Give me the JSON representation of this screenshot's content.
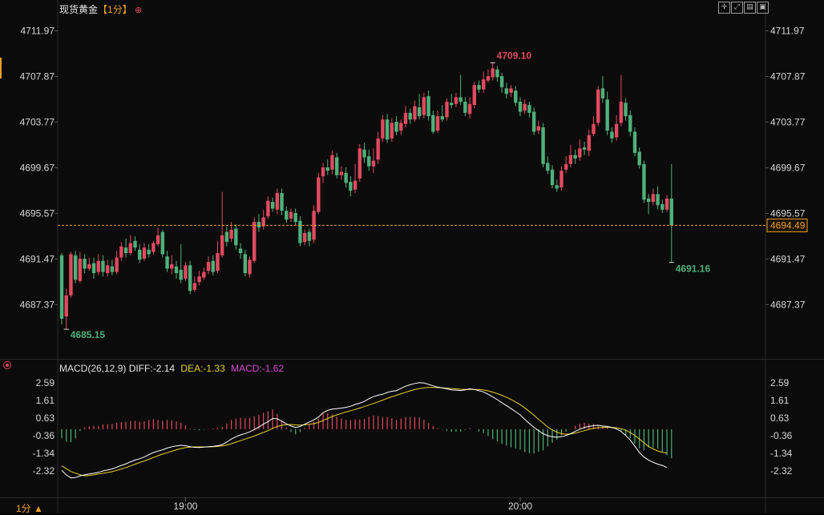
{
  "header": {
    "instrument": "现货黄金",
    "period": "【1分】",
    "period_icon": "plus-circle-icon"
  },
  "toolbar": {
    "icons": [
      "crosshair-icon",
      "expand-icon",
      "layout-icon",
      "window-icon"
    ]
  },
  "footer": {
    "period_label": "1分 ▲"
  },
  "colors": {
    "up": "#e04a5f",
    "down": "#4fb07a",
    "diff_line": "#ffffff",
    "dea_line": "#e8d02a",
    "macd_label": "#d84ad8",
    "current_price": "#f0a020",
    "marker_high": "#e04a5f",
    "marker_low": "#4fb07a",
    "background": "#0b0b0b"
  },
  "chart_data": [
    {
      "type": "candlestick",
      "x_tick_labels": [
        "19:00",
        "20:00"
      ],
      "y_tick_labels": [
        "4711.97",
        "4707.87",
        "4703.77",
        "4699.67",
        "4695.57",
        "4691.47",
        "4687.37"
      ],
      "ylim": [
        4682.5,
        4713.3
      ],
      "current_price": 4694.49,
      "current_price_label": "4694.49",
      "high_marker": {
        "value": 4709.1,
        "label": "4709.10"
      },
      "low_marker": {
        "value": 4685.15,
        "label": "4685.15"
      },
      "end_low_marker": {
        "value": 4691.16,
        "label": "4691.16"
      },
      "candles": [
        [
          4691.8,
          4686.1,
          4692.0,
          4685.6
        ],
        [
          4686.3,
          4688.2,
          4688.8,
          4685.15
        ],
        [
          4688.2,
          4691.9,
          4692.1,
          4688.0
        ],
        [
          4691.8,
          4689.6,
          4692.2,
          4689.3
        ],
        [
          4689.5,
          4691.5,
          4692.1,
          4689.3
        ],
        [
          4691.5,
          4690.6,
          4691.9,
          4690.2
        ],
        [
          4690.6,
          4691.0,
          4691.6,
          4690.4
        ],
        [
          4691.1,
          4690.2,
          4691.6,
          4689.7
        ],
        [
          4690.3,
          4691.3,
          4691.9,
          4690.0
        ],
        [
          4691.3,
          4690.3,
          4691.8,
          4689.9
        ],
        [
          4690.2,
          4690.9,
          4691.4,
          4689.9
        ],
        [
          4690.8,
          4690.3,
          4691.4,
          4690.0
        ],
        [
          4690.3,
          4691.6,
          4692.2,
          4690.1
        ],
        [
          4691.6,
          4692.6,
          4693.0,
          4691.3
        ],
        [
          4692.5,
          4692.0,
          4693.3,
          4691.6
        ],
        [
          4692.0,
          4692.9,
          4693.6,
          4691.8
        ],
        [
          4693.1,
          4692.5,
          4693.5,
          4692.2
        ],
        [
          4692.3,
          4691.4,
          4692.8,
          4691.1
        ],
        [
          4691.5,
          4692.5,
          4692.9,
          4691.3
        ],
        [
          4692.3,
          4691.9,
          4692.8,
          4691.6
        ],
        [
          4692.1,
          4692.9,
          4693.1,
          4691.9
        ],
        [
          4692.8,
          4693.6,
          4694.3,
          4692.6
        ],
        [
          4693.9,
          4691.9,
          4694.1,
          4691.6
        ],
        [
          4691.7,
          4690.6,
          4692.2,
          4690.3
        ],
        [
          4690.6,
          4691.0,
          4691.8,
          4690.1
        ],
        [
          4690.8,
          4690.2,
          4691.3,
          4689.7
        ],
        [
          4690.5,
          4689.6,
          4692.8,
          4689.3
        ],
        [
          4689.7,
          4690.9,
          4691.2,
          4689.5
        ],
        [
          4690.9,
          4688.6,
          4691.3,
          4688.3
        ],
        [
          4688.7,
          4689.3,
          4689.9,
          4688.5
        ],
        [
          4689.4,
          4689.9,
          4690.4,
          4689.1
        ],
        [
          4689.8,
          4690.3,
          4690.7,
          4689.6
        ],
        [
          4690.4,
          4691.2,
          4691.7,
          4690.1
        ],
        [
          4691.3,
          4690.3,
          4691.8,
          4690.0
        ],
        [
          4690.4,
          4692.0,
          4693.1,
          4690.2
        ],
        [
          4691.8,
          4693.6,
          4697.5,
          4691.6
        ],
        [
          4693.9,
          4693.0,
          4694.4,
          4692.6
        ],
        [
          4693.3,
          4694.1,
          4694.8,
          4693.0
        ],
        [
          4694.2,
          4692.7,
          4694.6,
          4692.3
        ],
        [
          4692.4,
          4692.0,
          4692.9,
          4691.5
        ],
        [
          4691.9,
          4690.2,
          4692.3,
          4689.9
        ],
        [
          4690.1,
          4691.4,
          4691.7,
          4689.8
        ],
        [
          4691.3,
          4694.8,
          4695.2,
          4691.1
        ],
        [
          4694.8,
          4694.3,
          4695.5,
          4693.9
        ],
        [
          4694.4,
          4695.2,
          4695.9,
          4694.1
        ],
        [
          4695.3,
          4696.7,
          4697.1,
          4695.1
        ],
        [
          4696.6,
          4696.0,
          4697.0,
          4695.7
        ],
        [
          4695.9,
          4697.4,
          4697.8,
          4695.5
        ],
        [
          4697.4,
          4695.8,
          4697.8,
          4695.4
        ],
        [
          4695.8,
          4695.0,
          4696.2,
          4694.7
        ],
        [
          4695.1,
          4695.7,
          4696.0,
          4694.8
        ],
        [
          4695.6,
          4694.8,
          4696.0,
          4694.5
        ],
        [
          4694.9,
          4692.9,
          4695.3,
          4692.6
        ],
        [
          4693.0,
          4693.8,
          4694.1,
          4692.7
        ],
        [
          4693.9,
          4693.1,
          4694.2,
          4692.6
        ],
        [
          4693.2,
          4695.8,
          4696.3,
          4692.9
        ],
        [
          4695.7,
          4698.8,
          4699.2,
          4695.5
        ],
        [
          4698.9,
          4699.7,
          4700.1,
          4698.3
        ],
        [
          4699.7,
          4699.4,
          4700.4,
          4699.0
        ],
        [
          4699.5,
          4700.8,
          4701.2,
          4699.1
        ],
        [
          4700.6,
          4699.0,
          4701.0,
          4698.7
        ],
        [
          4699.0,
          4699.3,
          4699.8,
          4698.6
        ],
        [
          4699.2,
          4698.3,
          4699.7,
          4697.9
        ],
        [
          4698.4,
          4697.6,
          4698.9,
          4697.1
        ],
        [
          4697.7,
          4698.5,
          4700.0,
          4697.4
        ],
        [
          4698.7,
          4701.4,
          4701.8,
          4698.4
        ],
        [
          4701.3,
          4700.6,
          4701.9,
          4700.1
        ],
        [
          4700.7,
          4699.8,
          4701.3,
          4699.4
        ],
        [
          4699.8,
          4700.3,
          4701.4,
          4699.2
        ],
        [
          4700.4,
          4702.3,
          4702.9,
          4700.0
        ],
        [
          4702.3,
          4704.0,
          4704.4,
          4702.0
        ],
        [
          4704.0,
          4702.2,
          4704.5,
          4701.9
        ],
        [
          4702.3,
          4703.7,
          4704.1,
          4702.0
        ],
        [
          4703.8,
          4702.9,
          4704.3,
          4702.6
        ],
        [
          4703.0,
          4703.7,
          4704.0,
          4702.6
        ],
        [
          4703.6,
          4704.6,
          4705.2,
          4703.3
        ],
        [
          4704.6,
          4704.0,
          4705.0,
          4703.6
        ],
        [
          4704.0,
          4705.2,
          4705.7,
          4703.8
        ],
        [
          4705.1,
          4704.3,
          4706.3,
          4704.0
        ],
        [
          4704.4,
          4706.0,
          4706.4,
          4704.1
        ],
        [
          4706.1,
          4704.3,
          4706.6,
          4703.9
        ],
        [
          4704.4,
          4702.9,
          4704.8,
          4702.7
        ],
        [
          4703.0,
          4704.3,
          4704.8,
          4702.8
        ],
        [
          4704.3,
          4704.0,
          4705.3,
          4703.8
        ],
        [
          4704.2,
          4705.6,
          4705.9,
          4703.9
        ],
        [
          4705.5,
          4705.3,
          4706.3,
          4705.0
        ],
        [
          4705.4,
          4706.0,
          4706.4,
          4705.1
        ],
        [
          4706.0,
          4705.6,
          4708.0,
          4705.3
        ],
        [
          4705.6,
          4704.6,
          4706.0,
          4704.3
        ],
        [
          4704.5,
          4705.4,
          4706.0,
          4704.1
        ],
        [
          4705.3,
          4707.1,
          4707.4,
          4705.0
        ],
        [
          4707.1,
          4706.7,
          4707.5,
          4706.4
        ],
        [
          4706.7,
          4707.6,
          4708.3,
          4706.4
        ],
        [
          4707.5,
          4707.9,
          4708.5,
          4707.3
        ],
        [
          4707.8,
          4708.6,
          4709.1,
          4707.5
        ],
        [
          4708.5,
          4707.8,
          4708.8,
          4707.4
        ],
        [
          4707.9,
          4706.9,
          4708.2,
          4706.4
        ],
        [
          4706.8,
          4706.3,
          4707.3,
          4705.9
        ],
        [
          4706.4,
          4706.8,
          4707.1,
          4706.0
        ],
        [
          4706.6,
          4705.5,
          4707.0,
          4705.2
        ],
        [
          4705.6,
          4704.7,
          4706.0,
          4704.3
        ],
        [
          4704.8,
          4705.4,
          4705.8,
          4704.5
        ],
        [
          4705.3,
          4704.6,
          4705.6,
          4704.2
        ],
        [
          4704.7,
          4702.9,
          4705.1,
          4702.6
        ],
        [
          4703.0,
          4703.4,
          4703.9,
          4702.7
        ],
        [
          4703.3,
          4700.0,
          4703.7,
          4699.7
        ],
        [
          4700.1,
          4699.4,
          4700.7,
          4699.1
        ],
        [
          4699.5,
          4698.1,
          4699.9,
          4697.8
        ],
        [
          4698.1,
          4697.8,
          4698.6,
          4697.5
        ],
        [
          4697.9,
          4699.4,
          4699.8,
          4697.6
        ],
        [
          4699.5,
          4700.0,
          4700.7,
          4699.2
        ],
        [
          4700.0,
          4700.8,
          4701.7,
          4699.7
        ],
        [
          4700.8,
          4700.5,
          4701.3,
          4700.0
        ],
        [
          4700.6,
          4701.4,
          4702.2,
          4700.3
        ],
        [
          4701.5,
          4701.3,
          4702.0,
          4700.8
        ],
        [
          4701.2,
          4702.6,
          4703.1,
          4700.7
        ],
        [
          4702.7,
          4703.6,
          4704.3,
          4702.5
        ],
        [
          4703.7,
          4706.7,
          4707.0,
          4703.4
        ],
        [
          4706.8,
          4705.9,
          4707.9,
          4705.5
        ],
        [
          4705.8,
          4703.0,
          4706.5,
          4702.6
        ],
        [
          4702.9,
          4702.3,
          4703.3,
          4701.9
        ],
        [
          4702.4,
          4703.6,
          4704.4,
          4702.1
        ],
        [
          4703.7,
          4705.6,
          4708.0,
          4703.4
        ],
        [
          4705.5,
          4704.3,
          4705.9,
          4703.9
        ],
        [
          4704.4,
          4702.9,
          4704.8,
          4702.5
        ],
        [
          4702.9,
          4701.0,
          4703.3,
          4700.7
        ],
        [
          4701.1,
          4699.9,
          4701.5,
          4699.6
        ],
        [
          4700.0,
          4696.8,
          4700.3,
          4696.5
        ],
        [
          4696.9,
          4696.6,
          4697.3,
          4695.5
        ],
        [
          4696.6,
          4697.3,
          4697.8,
          4696.3
        ],
        [
          4697.3,
          4696.3,
          4698.0,
          4695.9
        ],
        [
          4696.4,
          4695.9,
          4696.8,
          4695.6
        ],
        [
          4695.9,
          4696.9,
          4697.2,
          4695.7
        ],
        [
          4696.9,
          4694.5,
          4700.0,
          4691.16
        ]
      ]
    },
    {
      "type": "macd",
      "title": "MACD(26,12,9)",
      "legend": {
        "diff": "DIFF:-2.14",
        "dea": "DEA:-1.33",
        "macd": "MACD:-1.62"
      },
      "y_tick_labels": [
        "2.59",
        "1.61",
        "0.63",
        "-0.36",
        "-1.34",
        "-2.32"
      ],
      "ylim": [
        -3.0,
        2.9
      ],
      "diff": [
        -2.3,
        -2.55,
        -2.72,
        -2.7,
        -2.6,
        -2.55,
        -2.5,
        -2.46,
        -2.41,
        -2.33,
        -2.28,
        -2.22,
        -2.12,
        -2.02,
        -1.93,
        -1.82,
        -1.72,
        -1.65,
        -1.55,
        -1.42,
        -1.3,
        -1.22,
        -1.15,
        -1.05,
        -0.98,
        -0.93,
        -0.9,
        -0.92,
        -0.98,
        -1.01,
        -1.02,
        -1.0,
        -0.98,
        -0.96,
        -0.92,
        -0.86,
        -0.72,
        -0.55,
        -0.42,
        -0.32,
        -0.24,
        -0.15,
        -0.02,
        0.12,
        0.28,
        0.42,
        0.6,
        0.58,
        0.45,
        0.3,
        0.18,
        0.1,
        0.15,
        0.28,
        0.4,
        0.52,
        0.68,
        0.92,
        1.05,
        1.12,
        1.15,
        1.18,
        1.22,
        1.28,
        1.38,
        1.45,
        1.55,
        1.7,
        1.82,
        1.9,
        1.95,
        2.05,
        2.12,
        2.15,
        2.28,
        2.4,
        2.48,
        2.55,
        2.6,
        2.58,
        2.5,
        2.42,
        2.35,
        2.3,
        2.25,
        2.2,
        2.18,
        2.16,
        2.2,
        2.25,
        2.22,
        2.15,
        2.08,
        1.95,
        1.8,
        1.65,
        1.48,
        1.32,
        1.15,
        0.98,
        0.8,
        0.55,
        0.32,
        0.1,
        -0.08,
        -0.25,
        -0.36,
        -0.42,
        -0.45,
        -0.42,
        -0.35,
        -0.25,
        -0.12,
        0.0,
        0.1,
        0.15,
        0.2,
        0.22,
        0.18,
        0.15,
        0.1,
        0.02,
        -0.12,
        -0.35,
        -0.6,
        -0.95,
        -1.3,
        -1.55,
        -1.72,
        -1.85,
        -1.95,
        -2.02,
        -2.14
      ],
      "dea": [
        -2.05,
        -2.2,
        -2.36,
        -2.45,
        -2.55,
        -2.6,
        -2.58,
        -2.55,
        -2.5,
        -2.46,
        -2.42,
        -2.37,
        -2.3,
        -2.22,
        -2.14,
        -2.05,
        -1.95,
        -1.86,
        -1.77,
        -1.68,
        -1.58,
        -1.48,
        -1.39,
        -1.31,
        -1.23,
        -1.15,
        -1.08,
        -1.03,
        -1.0,
        -0.99,
        -0.99,
        -0.99,
        -0.99,
        -0.98,
        -0.96,
        -0.93,
        -0.88,
        -0.81,
        -0.72,
        -0.64,
        -0.55,
        -0.47,
        -0.38,
        -0.28,
        -0.18,
        -0.08,
        0.05,
        0.15,
        0.22,
        0.25,
        0.26,
        0.24,
        0.23,
        0.24,
        0.27,
        0.31,
        0.38,
        0.48,
        0.6,
        0.71,
        0.8,
        0.88,
        0.96,
        1.03,
        1.1,
        1.18,
        1.26,
        1.35,
        1.44,
        1.53,
        1.62,
        1.72,
        1.81,
        1.89,
        1.98,
        2.06,
        2.14,
        2.21,
        2.27,
        2.31,
        2.33,
        2.33,
        2.32,
        2.31,
        2.29,
        2.27,
        2.25,
        2.23,
        2.22,
        2.22,
        2.22,
        2.21,
        2.19,
        2.14,
        2.07,
        1.99,
        1.89,
        1.78,
        1.66,
        1.52,
        1.37,
        1.19,
        0.99,
        0.78,
        0.55,
        0.34,
        0.12,
        -0.04,
        -0.16,
        -0.25,
        -0.28,
        -0.26,
        -0.22,
        -0.15,
        -0.08,
        -0.01,
        0.05,
        0.08,
        0.1,
        0.11,
        0.1,
        0.08,
        0.03,
        -0.06,
        -0.19,
        -0.35,
        -0.55,
        -0.76,
        -0.96,
        -1.1,
        -1.21,
        -1.29,
        -1.33
      ],
      "macd": [
        -0.5,
        -0.7,
        -0.72,
        -0.5,
        -0.1,
        0.1,
        0.16,
        0.18,
        0.18,
        0.26,
        0.28,
        0.3,
        0.36,
        0.4,
        0.42,
        0.46,
        0.46,
        0.42,
        0.44,
        0.52,
        0.56,
        0.52,
        0.48,
        0.52,
        0.5,
        0.44,
        0.36,
        0.22,
        0.04,
        -0.04,
        -0.06,
        -0.02,
        0.02,
        0.04,
        0.08,
        0.14,
        0.32,
        0.52,
        0.6,
        0.64,
        0.62,
        0.64,
        0.72,
        0.8,
        0.92,
        1.0,
        1.1,
        0.86,
        0.46,
        0.1,
        -0.16,
        -0.28,
        -0.16,
        0.08,
        0.26,
        0.42,
        0.6,
        0.88,
        0.9,
        0.82,
        0.7,
        0.6,
        0.52,
        0.5,
        0.56,
        0.54,
        0.58,
        0.7,
        0.76,
        0.74,
        0.66,
        0.66,
        0.62,
        0.52,
        0.6,
        0.68,
        0.68,
        0.68,
        0.66,
        0.54,
        0.34,
        0.18,
        0.06,
        -0.02,
        -0.08,
        -0.14,
        -0.14,
        -0.14,
        -0.04,
        0.06,
        0.0,
        -0.12,
        -0.22,
        -0.38,
        -0.54,
        -0.68,
        -0.82,
        -0.92,
        -1.02,
        -1.08,
        -1.14,
        -1.28,
        -1.34,
        -1.36,
        -1.26,
        -1.18,
        -0.96,
        -0.76,
        -0.58,
        -0.34,
        -0.14,
        0.02,
        0.2,
        0.3,
        0.36,
        0.32,
        0.3,
        0.24,
        0.16,
        0.1,
        0.04,
        -0.02,
        -0.12,
        -0.32,
        -0.5,
        -0.8,
        -1.08,
        -1.18,
        -1.02,
        -1.02,
        -1.08,
        -1.26,
        -1.46,
        -1.62
      ]
    }
  ]
}
